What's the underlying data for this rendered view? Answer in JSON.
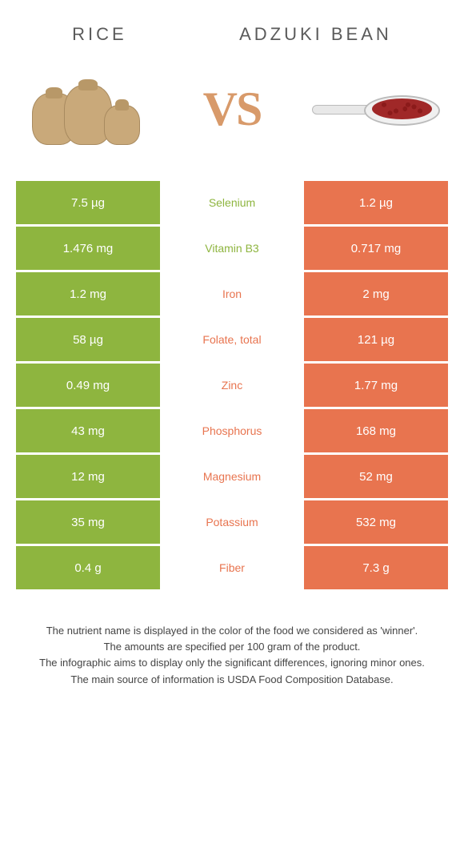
{
  "header": {
    "left_title": "Rice",
    "right_title": "Adzuki bean",
    "vs_label": "VS"
  },
  "colors": {
    "rice": "#8eb53f",
    "bean": "#e8744f",
    "rice_text": "#8eb53f",
    "bean_text": "#e8744f"
  },
  "table": {
    "type": "comparison-table",
    "rows": [
      {
        "nutrient": "Selenium",
        "left": "7.5 µg",
        "right": "1.2 µg",
        "winner": "rice"
      },
      {
        "nutrient": "Vitamin B3",
        "left": "1.476 mg",
        "right": "0.717 mg",
        "winner": "rice"
      },
      {
        "nutrient": "Iron",
        "left": "1.2 mg",
        "right": "2 mg",
        "winner": "bean"
      },
      {
        "nutrient": "Folate, total",
        "left": "58 µg",
        "right": "121 µg",
        "winner": "bean"
      },
      {
        "nutrient": "Zinc",
        "left": "0.49 mg",
        "right": "1.77 mg",
        "winner": "bean"
      },
      {
        "nutrient": "Phosphorus",
        "left": "43 mg",
        "right": "168 mg",
        "winner": "bean"
      },
      {
        "nutrient": "Magnesium",
        "left": "12 mg",
        "right": "52 mg",
        "winner": "bean"
      },
      {
        "nutrient": "Potassium",
        "left": "35 mg",
        "right": "532 mg",
        "winner": "bean"
      },
      {
        "nutrient": "Fiber",
        "left": "0.4 g",
        "right": "7.3 g",
        "winner": "bean"
      }
    ]
  },
  "footnotes": [
    "The nutrient name is displayed in the color of the food we considered as 'winner'.",
    "The amounts are specified per 100 gram of the product.",
    "The infographic aims to display only the significant differences, ignoring minor ones.",
    "The main source of information is USDA Food Composition Database."
  ]
}
